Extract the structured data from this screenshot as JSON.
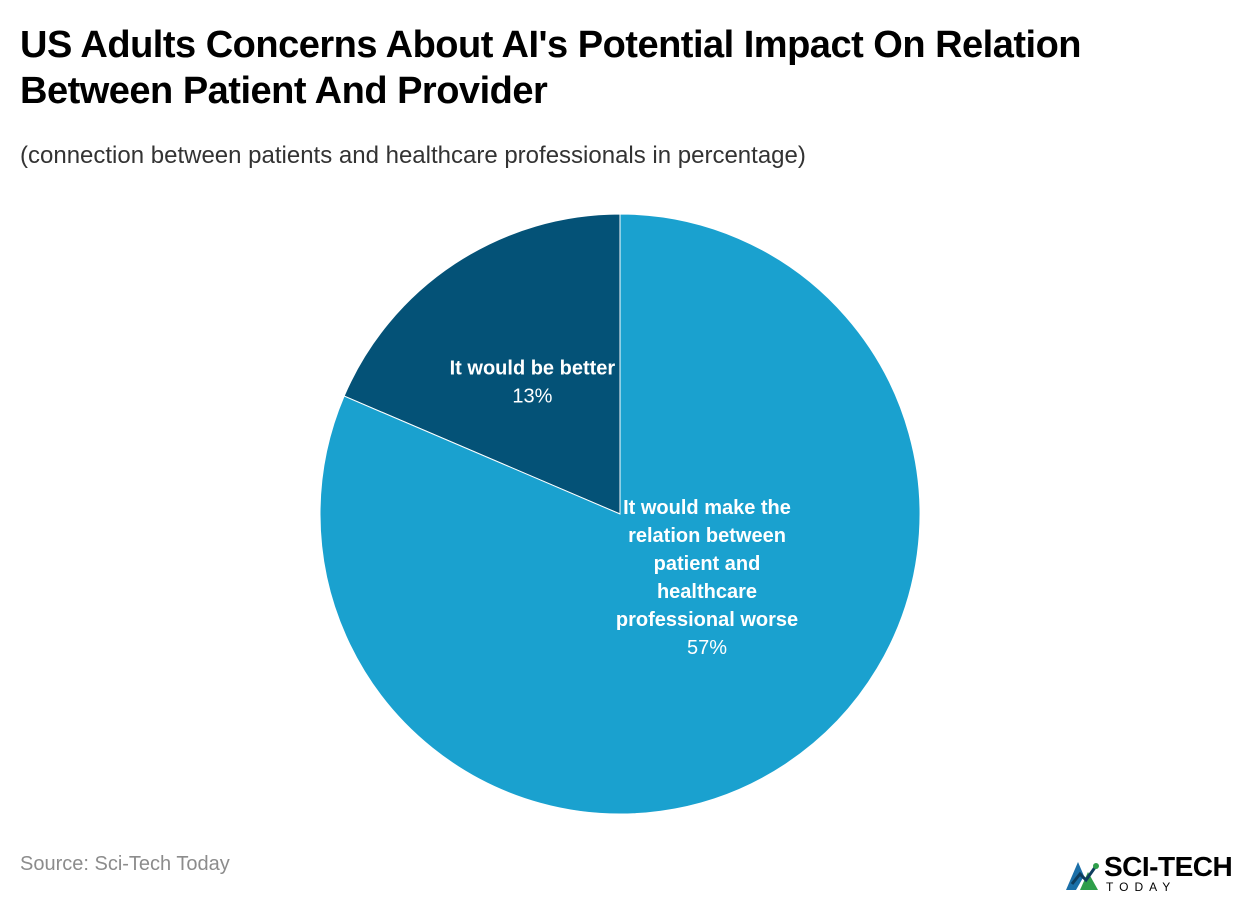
{
  "title": "US Adults Concerns About AI's Potential Impact On Relation Between Patient And Provider",
  "subtitle": "(connection between patients and healthcare professionals in percentage)",
  "source": "Source: Sci-Tech Today",
  "logo": {
    "name": "SCI-TECH",
    "tagline": "TODAY",
    "icon": "sci-tech-logo-icon"
  },
  "colors": {
    "slice_better": "#045277",
    "slice_worse": "#1aa1cf",
    "logo_green": "#2e9e4a",
    "logo_blue": "#1b6fa8"
  },
  "chart_data": {
    "type": "pie",
    "title": "US Adults Concerns About AI's Potential Impact On Relation Between Patient And Provider",
    "subtitle": "(connection between patients and healthcare professionals in percentage)",
    "slices": [
      {
        "label": "It would be better",
        "label_lines": [
          "It would be better"
        ],
        "value": 13,
        "display": "13%",
        "color": "#045277"
      },
      {
        "label": "It would make the relation between patient and healthcare professional worse",
        "label_lines": [
          "It would make the",
          "relation between",
          "patient and",
          "healthcare",
          "professional worse"
        ],
        "value": 57,
        "display": "57%",
        "color": "#1aa1cf"
      }
    ]
  }
}
